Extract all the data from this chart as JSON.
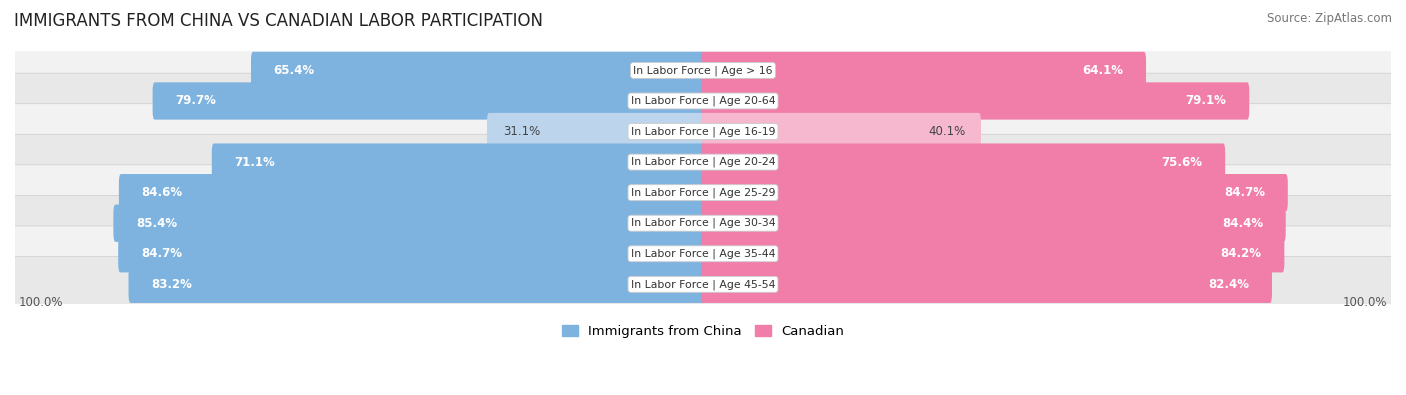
{
  "title": "IMMIGRANTS FROM CHINA VS CANADIAN LABOR PARTICIPATION",
  "source": "Source: ZipAtlas.com",
  "categories": [
    "In Labor Force | Age > 16",
    "In Labor Force | Age 20-64",
    "In Labor Force | Age 16-19",
    "In Labor Force | Age 20-24",
    "In Labor Force | Age 25-29",
    "In Labor Force | Age 30-34",
    "In Labor Force | Age 35-44",
    "In Labor Force | Age 45-54"
  ],
  "china_values": [
    65.4,
    79.7,
    31.1,
    71.1,
    84.6,
    85.4,
    84.7,
    83.2
  ],
  "canadian_values": [
    64.1,
    79.1,
    40.1,
    75.6,
    84.7,
    84.4,
    84.2,
    82.4
  ],
  "china_color": "#7EB3E0",
  "china_color_light": "#BDD5EC",
  "canadian_color": "#F07EA8",
  "canadian_color_light": "#F5B8CE",
  "row_bg_color": "#F2F2F2",
  "row_bg_alt_color": "#E8E8E8",
  "max_value": 100.0,
  "legend_china": "Immigrants from China",
  "legend_canadian": "Canadian",
  "title_fontsize": 12,
  "figsize": [
    14.06,
    3.95
  ]
}
